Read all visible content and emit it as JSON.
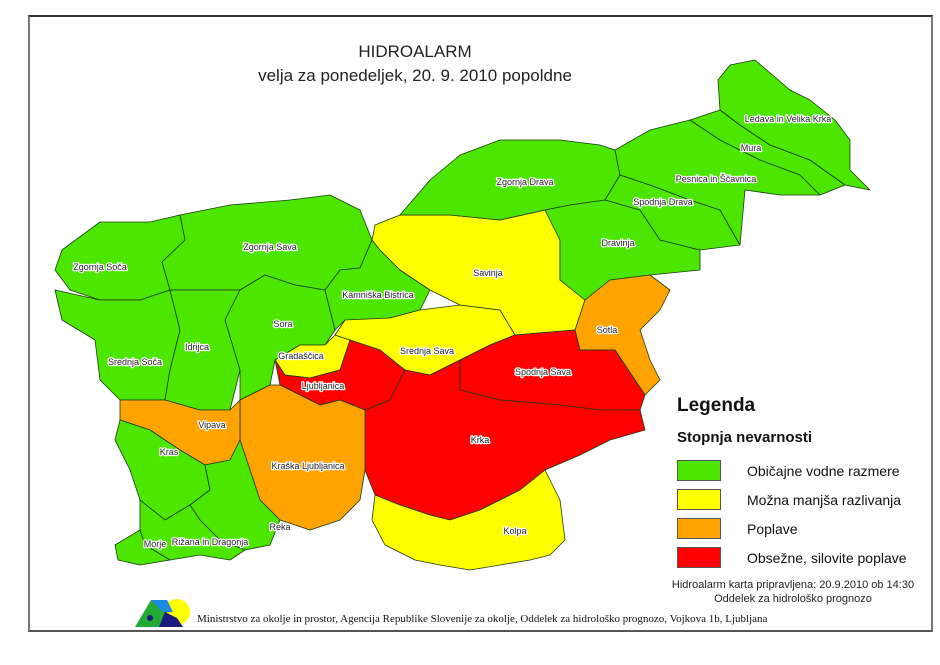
{
  "title": {
    "line1": "HIDROALARM",
    "line2": "velja za ponedeljek, 20. 9. 2010 popoldne"
  },
  "levels": {
    "green": {
      "label": "Običajne vodne razmere",
      "color": "#4ce600"
    },
    "yellow": {
      "label": "Možna manjša razlivanja",
      "color": "#ffff00"
    },
    "orange": {
      "label": "Poplave",
      "color": "#ffa300"
    },
    "red": {
      "label": "Obsežne, silovite poplave",
      "color": "#ff0000"
    }
  },
  "legend": {
    "title": "Legenda",
    "subtitle": "Stopnja nevarnosti",
    "items": [
      {
        "label": "Običajne vodne razmere",
        "color": "#4ce600"
      },
      {
        "label": "Možna manjša razlivanja",
        "color": "#ffff00"
      },
      {
        "label": "Poplave",
        "color": "#ffa300"
      },
      {
        "label": "Obsežne, silovite poplave",
        "color": "#ff0000"
      }
    ]
  },
  "regions": [
    {
      "name": "Zgornja Soča",
      "level": "green"
    },
    {
      "name": "Zgornja Sava",
      "level": "green"
    },
    {
      "name": "Srednja Soča",
      "level": "green"
    },
    {
      "name": "Idrijca",
      "level": "green"
    },
    {
      "name": "Sora",
      "level": "green"
    },
    {
      "name": "Kamniška Bistrica",
      "level": "green"
    },
    {
      "name": "Gradaščica",
      "level": "yellow"
    },
    {
      "name": "Srednja Sava",
      "level": "yellow"
    },
    {
      "name": "Savinja",
      "level": "yellow"
    },
    {
      "name": "Zgornja Drava",
      "level": "green"
    },
    {
      "name": "Dravinja",
      "level": "green"
    },
    {
      "name": "Spodnja Drava",
      "level": "green"
    },
    {
      "name": "Pesnica in Ščavnica",
      "level": "green"
    },
    {
      "name": "Mura",
      "level": "green"
    },
    {
      "name": "Ledava in Velika Krka",
      "level": "green"
    },
    {
      "name": "Sotla",
      "level": "orange"
    },
    {
      "name": "Spodnja Sava",
      "level": "red"
    },
    {
      "name": "Ljubljanica",
      "level": "red"
    },
    {
      "name": "Krka",
      "level": "red"
    },
    {
      "name": "Kolpa",
      "level": "yellow"
    },
    {
      "name": "Kraška Ljubljanica",
      "level": "orange"
    },
    {
      "name": "Vipava",
      "level": "orange"
    },
    {
      "name": "Kras",
      "level": "green"
    },
    {
      "name": "Reka",
      "level": "green"
    },
    {
      "name": "Rižana in Dragonja",
      "level": "green"
    },
    {
      "name": "Morje",
      "level": "green"
    }
  ],
  "note": {
    "line1": "Hidroalarm karta pripravljena: 20.9.2010 ob 14:30",
    "line2": "Oddelek za hidrološko prognozo"
  },
  "footer": "Ministrstvo za okolje in prostor, Agencija Republike Slovenije za okolje, Oddelek za hidrološko prognozo, Vojkova 1b, Ljubljana"
}
